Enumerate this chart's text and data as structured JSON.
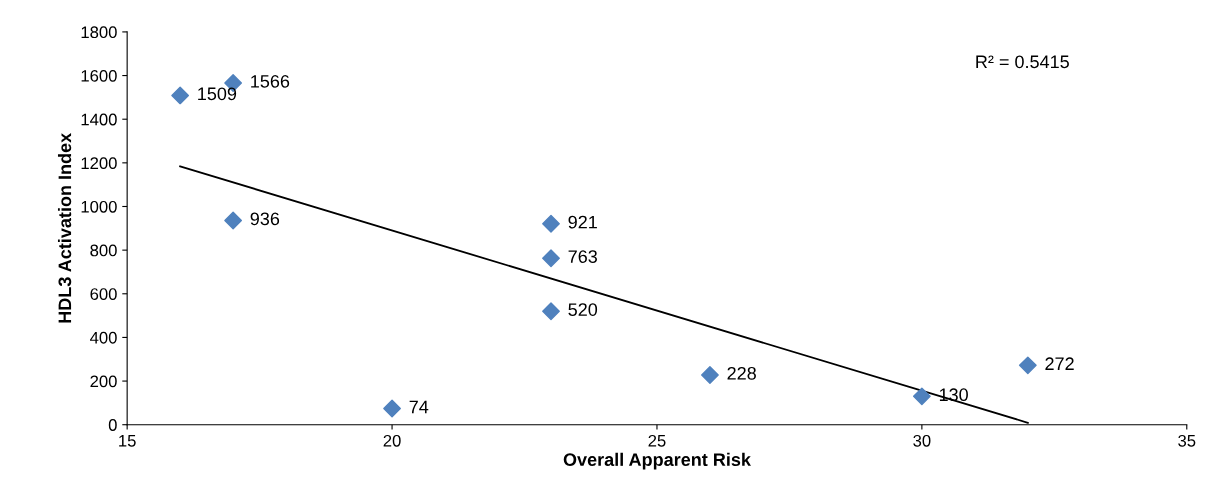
{
  "chart_data": {
    "type": "scatter",
    "xlabel": "Overall Apparent Risk",
    "ylabel": "HDL3 Activation Index",
    "xlim": [
      15,
      35
    ],
    "xticks": [
      15,
      20,
      25,
      30,
      35
    ],
    "ylim": [
      0,
      1800
    ],
    "yticks": [
      0,
      200,
      400,
      600,
      800,
      1000,
      1200,
      1400,
      1600,
      1800
    ],
    "grid": false,
    "legend": false,
    "marker": "diamond",
    "annotations": [
      "R² = 0.5415"
    ],
    "series": [
      {
        "color": "#4f81bd",
        "x": [
          16,
          17,
          17,
          20,
          23,
          23,
          23,
          26,
          30,
          32
        ],
        "values": [
          1509,
          1566,
          936,
          74,
          921,
          763,
          520,
          228,
          130,
          272
        ],
        "value_labels": [
          "1509",
          "1566",
          "936",
          "74",
          "921",
          "763",
          "520",
          "228",
          "130",
          "272"
        ]
      },
      {
        "type": "line",
        "color": "#000000",
        "x": [
          16,
          32
        ],
        "values": [
          1184,
          9
        ],
        "marker": "none",
        "line_style": "solid"
      }
    ]
  }
}
